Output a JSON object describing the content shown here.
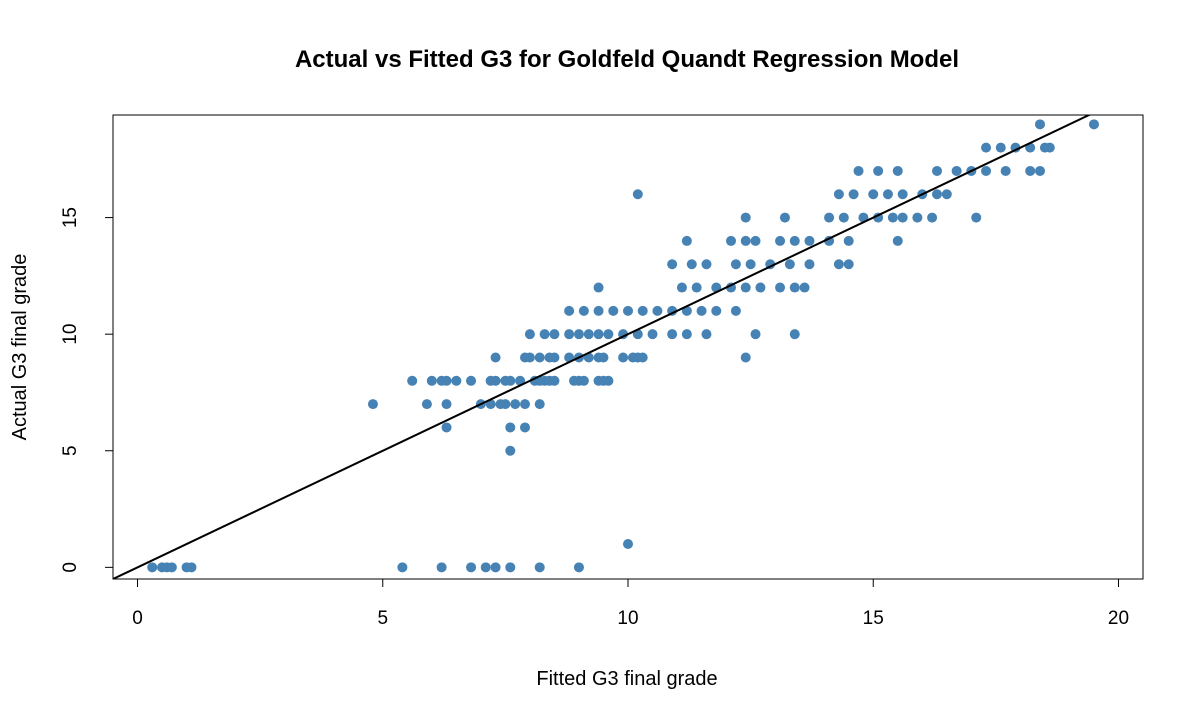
{
  "chart_data": {
    "type": "scatter",
    "title": "Actual vs Fitted G3 for Goldfeld Quandt Regression Model",
    "xlabel": "Fitted G3 final grade",
    "ylabel": "Actual G3 final grade",
    "xlim": [
      -0.5,
      20.5
    ],
    "ylim": [
      -0.5,
      19.4
    ],
    "xticks": [
      0,
      5,
      10,
      15,
      20
    ],
    "yticks": [
      0,
      5,
      10,
      15
    ],
    "grid": false,
    "point_color": "#4682B4",
    "line_color": "#000000",
    "reference_line": {
      "type": "y=x"
    },
    "points": [
      [
        0.3,
        0
      ],
      [
        0.5,
        0
      ],
      [
        0.6,
        0
      ],
      [
        0.7,
        0
      ],
      [
        1.0,
        0
      ],
      [
        1.1,
        0
      ],
      [
        5.4,
        0
      ],
      [
        6.2,
        0
      ],
      [
        6.8,
        0
      ],
      [
        7.1,
        0
      ],
      [
        7.3,
        0
      ],
      [
        7.6,
        0
      ],
      [
        8.2,
        0
      ],
      [
        9.0,
        0
      ],
      [
        10.0,
        1
      ],
      [
        7.6,
        5
      ],
      [
        6.3,
        6
      ],
      [
        7.6,
        6
      ],
      [
        7.9,
        6
      ],
      [
        4.8,
        7
      ],
      [
        5.9,
        7
      ],
      [
        6.3,
        7
      ],
      [
        7.0,
        7
      ],
      [
        7.2,
        7
      ],
      [
        7.4,
        7
      ],
      [
        7.5,
        7
      ],
      [
        7.7,
        7
      ],
      [
        7.9,
        7
      ],
      [
        8.2,
        7
      ],
      [
        5.6,
        8
      ],
      [
        6.0,
        8
      ],
      [
        6.2,
        8
      ],
      [
        6.3,
        8
      ],
      [
        6.5,
        8
      ],
      [
        6.8,
        8
      ],
      [
        7.2,
        8
      ],
      [
        7.3,
        8
      ],
      [
        7.5,
        8
      ],
      [
        7.6,
        8
      ],
      [
        7.8,
        8
      ],
      [
        8.1,
        8
      ],
      [
        8.2,
        8
      ],
      [
        8.3,
        8
      ],
      [
        8.4,
        8
      ],
      [
        8.5,
        8
      ],
      [
        8.9,
        8
      ],
      [
        9.0,
        8
      ],
      [
        9.1,
        8
      ],
      [
        9.4,
        8
      ],
      [
        9.5,
        8
      ],
      [
        9.6,
        8
      ],
      [
        7.3,
        9
      ],
      [
        7.9,
        9
      ],
      [
        8.0,
        9
      ],
      [
        8.2,
        9
      ],
      [
        8.4,
        9
      ],
      [
        8.5,
        9
      ],
      [
        8.8,
        9
      ],
      [
        9.0,
        9
      ],
      [
        9.2,
        9
      ],
      [
        9.4,
        9
      ],
      [
        9.5,
        9
      ],
      [
        9.9,
        9
      ],
      [
        10.1,
        9
      ],
      [
        10.2,
        9
      ],
      [
        10.3,
        9
      ],
      [
        12.4,
        9
      ],
      [
        8.0,
        10
      ],
      [
        8.3,
        10
      ],
      [
        8.5,
        10
      ],
      [
        8.8,
        10
      ],
      [
        9.0,
        10
      ],
      [
        9.2,
        10
      ],
      [
        9.4,
        10
      ],
      [
        9.6,
        10
      ],
      [
        9.9,
        10
      ],
      [
        10.2,
        10
      ],
      [
        10.5,
        10
      ],
      [
        10.9,
        10
      ],
      [
        11.2,
        10
      ],
      [
        11.6,
        10
      ],
      [
        12.6,
        10
      ],
      [
        13.4,
        10
      ],
      [
        8.8,
        11
      ],
      [
        9.1,
        11
      ],
      [
        9.4,
        11
      ],
      [
        9.7,
        11
      ],
      [
        10.0,
        11
      ],
      [
        10.3,
        11
      ],
      [
        10.6,
        11
      ],
      [
        10.9,
        11
      ],
      [
        11.2,
        11
      ],
      [
        11.5,
        11
      ],
      [
        11.8,
        11
      ],
      [
        12.2,
        11
      ],
      [
        9.4,
        12
      ],
      [
        11.1,
        12
      ],
      [
        11.4,
        12
      ],
      [
        11.8,
        12
      ],
      [
        12.1,
        12
      ],
      [
        12.4,
        12
      ],
      [
        12.7,
        12
      ],
      [
        13.1,
        12
      ],
      [
        13.4,
        12
      ],
      [
        13.6,
        12
      ],
      [
        10.9,
        13
      ],
      [
        11.3,
        13
      ],
      [
        11.6,
        13
      ],
      [
        12.2,
        13
      ],
      [
        12.5,
        13
      ],
      [
        12.9,
        13
      ],
      [
        13.3,
        13
      ],
      [
        13.7,
        13
      ],
      [
        14.3,
        13
      ],
      [
        14.5,
        13
      ],
      [
        11.2,
        14
      ],
      [
        12.1,
        14
      ],
      [
        12.4,
        14
      ],
      [
        12.6,
        14
      ],
      [
        13.1,
        14
      ],
      [
        13.4,
        14
      ],
      [
        13.7,
        14
      ],
      [
        14.1,
        14
      ],
      [
        14.5,
        14
      ],
      [
        15.5,
        14
      ],
      [
        12.4,
        15
      ],
      [
        13.2,
        15
      ],
      [
        14.1,
        15
      ],
      [
        14.4,
        15
      ],
      [
        14.8,
        15
      ],
      [
        15.1,
        15
      ],
      [
        15.4,
        15
      ],
      [
        15.6,
        15
      ],
      [
        15.9,
        15
      ],
      [
        16.2,
        15
      ],
      [
        17.1,
        15
      ],
      [
        10.2,
        16
      ],
      [
        14.3,
        16
      ],
      [
        14.6,
        16
      ],
      [
        15.0,
        16
      ],
      [
        15.3,
        16
      ],
      [
        15.6,
        16
      ],
      [
        16.0,
        16
      ],
      [
        16.3,
        16
      ],
      [
        16.5,
        16
      ],
      [
        14.7,
        17
      ],
      [
        15.1,
        17
      ],
      [
        15.5,
        17
      ],
      [
        16.3,
        17
      ],
      [
        16.7,
        17
      ],
      [
        17.0,
        17
      ],
      [
        17.3,
        17
      ],
      [
        17.7,
        17
      ],
      [
        18.2,
        17
      ],
      [
        18.4,
        17
      ],
      [
        17.3,
        18
      ],
      [
        17.6,
        18
      ],
      [
        17.9,
        18
      ],
      [
        18.2,
        18
      ],
      [
        18.5,
        18
      ],
      [
        18.6,
        18
      ],
      [
        18.4,
        19
      ],
      [
        19.5,
        19
      ]
    ]
  }
}
